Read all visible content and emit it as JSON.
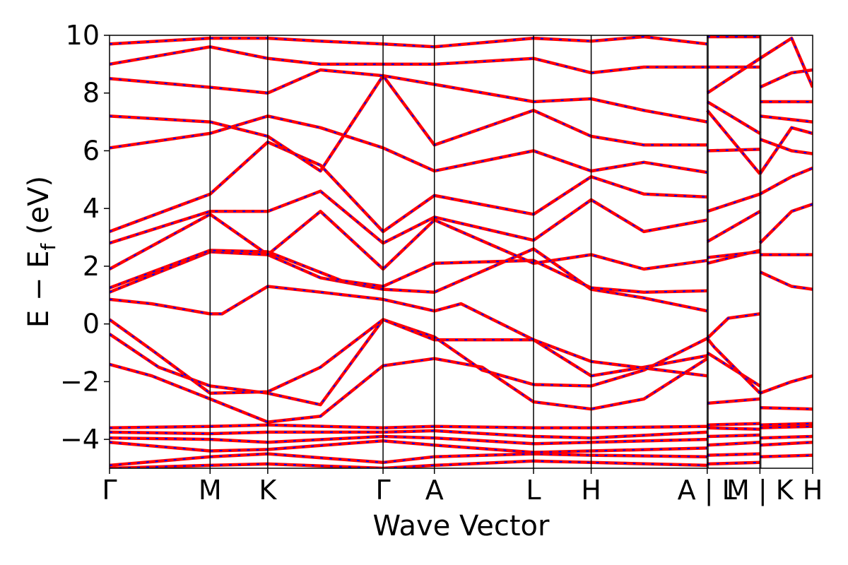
{
  "chart_data": {
    "type": "line",
    "title": "",
    "xlabel": "Wave Vector",
    "ylabel": "E − E",
    "ylabel_subscript": "f",
    "ylabel_unit": "(eV)",
    "ylim": [
      -5,
      10
    ],
    "y_ticks": [
      {
        "value": -4,
        "label": "−4"
      },
      {
        "value": -2,
        "label": "−2"
      },
      {
        "value": 0,
        "label": "0"
      },
      {
        "value": 2,
        "label": "2"
      },
      {
        "value": 4,
        "label": "4"
      },
      {
        "value": 6,
        "label": "6"
      },
      {
        "value": 8,
        "label": "8"
      },
      {
        "value": 10,
        "label": "10"
      }
    ],
    "k_path": [
      {
        "pos": 0.0,
        "label": "Γ"
      },
      {
        "pos": 0.143,
        "label": "M"
      },
      {
        "pos": 0.225,
        "label": "K"
      },
      {
        "pos": 0.389,
        "label": "Γ"
      },
      {
        "pos": 0.462,
        "label": "A"
      },
      {
        "pos": 0.603,
        "label": "L"
      },
      {
        "pos": 0.685,
        "label": "H"
      },
      {
        "pos": 0.85,
        "label": "A | L"
      },
      {
        "pos": 0.925,
        "label": "M | K"
      },
      {
        "pos": 1.0,
        "label": "H"
      }
    ],
    "segment_breaks": [
      0.85,
      0.925
    ],
    "line_colors": {
      "band_solid": "#ff0000",
      "band_dashed": "#0000ff"
    },
    "bands": [
      [
        [
          0,
          -5.0
        ],
        [
          0.143,
          -4.9
        ],
        [
          0.225,
          -4.85
        ],
        [
          0.389,
          -5.0
        ],
        [
          0.462,
          -4.9
        ],
        [
          0.603,
          -4.75
        ],
        [
          0.685,
          -4.8
        ],
        [
          0.85,
          -4.9
        ]
      ],
      [
        [
          0,
          -4.9
        ],
        [
          0.143,
          -4.6
        ],
        [
          0.225,
          -4.5
        ],
        [
          0.389,
          -4.8
        ],
        [
          0.462,
          -4.6
        ],
        [
          0.603,
          -4.5
        ],
        [
          0.685,
          -4.55
        ],
        [
          0.85,
          -4.6
        ]
      ],
      [
        [
          0,
          -4.1
        ],
        [
          0.143,
          -4.4
        ],
        [
          0.225,
          -4.35
        ],
        [
          0.389,
          -4.05
        ],
        [
          0.462,
          -4.2
        ],
        [
          0.603,
          -4.45
        ],
        [
          0.685,
          -4.4
        ],
        [
          0.85,
          -4.3
        ]
      ],
      [
        [
          0,
          -3.95
        ],
        [
          0.143,
          -4.0
        ],
        [
          0.225,
          -4.1
        ],
        [
          0.389,
          -3.9
        ],
        [
          0.462,
          -3.95
        ],
        [
          0.603,
          -4.15
        ],
        [
          0.685,
          -4.1
        ],
        [
          0.85,
          -4.0
        ]
      ],
      [
        [
          0,
          -3.75
        ],
        [
          0.143,
          -3.8
        ],
        [
          0.225,
          -3.75
        ],
        [
          0.389,
          -3.75
        ],
        [
          0.462,
          -3.7
        ],
        [
          0.603,
          -3.9
        ],
        [
          0.685,
          -3.95
        ],
        [
          0.85,
          -3.75
        ]
      ],
      [
        [
          0,
          -3.6
        ],
        [
          0.143,
          -3.55
        ],
        [
          0.225,
          -3.5
        ],
        [
          0.389,
          -3.6
        ],
        [
          0.462,
          -3.55
        ],
        [
          0.603,
          -3.6
        ],
        [
          0.685,
          -3.6
        ],
        [
          0.85,
          -3.55
        ]
      ],
      [
        [
          0,
          -1.4
        ],
        [
          0.06,
          -1.8
        ],
        [
          0.143,
          -2.6
        ],
        [
          0.225,
          -3.4
        ],
        [
          0.3,
          -3.2
        ],
        [
          0.389,
          -1.45
        ],
        [
          0.462,
          -1.2
        ],
        [
          0.53,
          -1.5
        ],
        [
          0.603,
          -2.7
        ],
        [
          0.685,
          -2.95
        ],
        [
          0.76,
          -2.6
        ],
        [
          0.85,
          -1.2
        ]
      ],
      [
        [
          0,
          -0.35
        ],
        [
          0.07,
          -1.5
        ],
        [
          0.143,
          -2.15
        ],
        [
          0.225,
          -2.4
        ],
        [
          0.3,
          -2.8
        ],
        [
          0.389,
          0.15
        ],
        [
          0.462,
          -0.45
        ],
        [
          0.53,
          -1.6
        ],
        [
          0.603,
          -2.1
        ],
        [
          0.685,
          -2.15
        ],
        [
          0.76,
          -1.6
        ],
        [
          0.85,
          -0.5
        ]
      ],
      [
        [
          0,
          0.15
        ],
        [
          0.06,
          -0.9
        ],
        [
          0.143,
          -2.4
        ],
        [
          0.225,
          -2.35
        ],
        [
          0.3,
          -1.5
        ],
        [
          0.389,
          0.15
        ],
        [
          0.462,
          -0.55
        ],
        [
          0.603,
          -0.55
        ],
        [
          0.685,
          -1.8
        ],
        [
          0.76,
          -1.5
        ],
        [
          0.85,
          -1.1
        ]
      ],
      [
        [
          0,
          0.85
        ],
        [
          0.06,
          0.7
        ],
        [
          0.143,
          0.35
        ],
        [
          0.16,
          0.35
        ],
        [
          0.225,
          1.3
        ],
        [
          0.3,
          1.1
        ],
        [
          0.389,
          0.85
        ],
        [
          0.462,
          0.45
        ],
        [
          0.5,
          0.7
        ],
        [
          0.603,
          -0.55
        ],
        [
          0.685,
          -1.3
        ],
        [
          0.85,
          -1.8
        ]
      ],
      [
        [
          0,
          1.1
        ],
        [
          0.143,
          2.5
        ],
        [
          0.225,
          2.4
        ],
        [
          0.3,
          1.6
        ],
        [
          0.389,
          1.2
        ],
        [
          0.462,
          1.1
        ],
        [
          0.603,
          2.6
        ],
        [
          0.685,
          1.2
        ],
        [
          0.76,
          0.9
        ],
        [
          0.85,
          0.45
        ]
      ],
      [
        [
          0,
          1.25
        ],
        [
          0.143,
          2.55
        ],
        [
          0.225,
          2.5
        ],
        [
          0.33,
          1.5
        ],
        [
          0.389,
          1.3
        ],
        [
          0.462,
          2.1
        ],
        [
          0.603,
          2.2
        ],
        [
          0.685,
          1.25
        ],
        [
          0.76,
          1.1
        ],
        [
          0.85,
          1.15
        ]
      ],
      [
        [
          0,
          1.9
        ],
        [
          0.143,
          3.8
        ],
        [
          0.225,
          2.4
        ],
        [
          0.3,
          3.9
        ],
        [
          0.389,
          1.9
        ],
        [
          0.462,
          3.6
        ],
        [
          0.603,
          2.1
        ],
        [
          0.685,
          2.4
        ],
        [
          0.76,
          1.9
        ],
        [
          0.85,
          2.2
        ]
      ],
      [
        [
          0,
          2.8
        ],
        [
          0.143,
          3.9
        ],
        [
          0.225,
          3.9
        ],
        [
          0.3,
          4.6
        ],
        [
          0.389,
          2.8
        ],
        [
          0.462,
          3.7
        ],
        [
          0.603,
          2.9
        ],
        [
          0.685,
          4.3
        ],
        [
          0.76,
          3.2
        ],
        [
          0.85,
          3.6
        ]
      ],
      [
        [
          0,
          3.2
        ],
        [
          0.143,
          4.5
        ],
        [
          0.225,
          6.3
        ],
        [
          0.3,
          5.5
        ],
        [
          0.389,
          3.2
        ],
        [
          0.462,
          4.45
        ],
        [
          0.603,
          3.8
        ],
        [
          0.685,
          5.1
        ],
        [
          0.76,
          4.5
        ],
        [
          0.85,
          4.4
        ]
      ],
      [
        [
          0,
          6.1
        ],
        [
          0.143,
          6.6
        ],
        [
          0.225,
          7.2
        ],
        [
          0.3,
          6.8
        ],
        [
          0.389,
          6.1
        ],
        [
          0.462,
          5.3
        ],
        [
          0.603,
          6.0
        ],
        [
          0.685,
          5.3
        ],
        [
          0.76,
          5.6
        ],
        [
          0.85,
          5.25
        ]
      ],
      [
        [
          0,
          7.2
        ],
        [
          0.143,
          7.0
        ],
        [
          0.225,
          6.5
        ],
        [
          0.3,
          5.3
        ],
        [
          0.389,
          8.6
        ],
        [
          0.462,
          6.2
        ],
        [
          0.603,
          7.4
        ],
        [
          0.685,
          6.5
        ],
        [
          0.76,
          6.2
        ],
        [
          0.85,
          6.2
        ]
      ],
      [
        [
          0,
          8.5
        ],
        [
          0.143,
          8.2
        ],
        [
          0.225,
          8.0
        ],
        [
          0.3,
          8.8
        ],
        [
          0.389,
          8.6
        ],
        [
          0.462,
          8.3
        ],
        [
          0.603,
          7.7
        ],
        [
          0.685,
          7.8
        ],
        [
          0.76,
          7.4
        ],
        [
          0.85,
          7.0
        ]
      ],
      [
        [
          0,
          9.0
        ],
        [
          0.143,
          9.6
        ],
        [
          0.225,
          9.2
        ],
        [
          0.3,
          9.0
        ],
        [
          0.389,
          9.0
        ],
        [
          0.462,
          9.0
        ],
        [
          0.603,
          9.2
        ],
        [
          0.685,
          8.7
        ],
        [
          0.76,
          8.9
        ],
        [
          0.85,
          8.9
        ]
      ],
      [
        [
          0,
          9.7
        ],
        [
          0.143,
          9.9
        ],
        [
          0.225,
          9.9
        ],
        [
          0.3,
          9.8
        ],
        [
          0.389,
          9.7
        ],
        [
          0.462,
          9.6
        ],
        [
          0.603,
          9.9
        ],
        [
          0.685,
          9.8
        ],
        [
          0.76,
          9.95
        ],
        [
          0.85,
          9.7
        ]
      ],
      [
        [
          0.85,
          -4.85
        ],
        [
          0.925,
          -4.8
        ]
      ],
      [
        [
          0.85,
          -4.55
        ],
        [
          0.925,
          -4.5
        ]
      ],
      [
        [
          0.85,
          -4.2
        ],
        [
          0.925,
          -4.1
        ]
      ],
      [
        [
          0.85,
          -3.9
        ],
        [
          0.925,
          -3.85
        ]
      ],
      [
        [
          0.85,
          -3.6
        ],
        [
          0.925,
          -3.65
        ]
      ],
      [
        [
          0.85,
          -3.5
        ],
        [
          0.925,
          -3.45
        ]
      ],
      [
        [
          0.85,
          -2.75
        ],
        [
          0.925,
          -2.6
        ]
      ],
      [
        [
          0.85,
          -1.0
        ],
        [
          0.925,
          -2.15
        ]
      ],
      [
        [
          0.85,
          -0.5
        ],
        [
          0.86,
          -0.8
        ],
        [
          0.925,
          -2.4
        ]
      ],
      [
        [
          0.85,
          -0.5
        ],
        [
          0.88,
          0.2
        ],
        [
          0.925,
          0.35
        ]
      ],
      [
        [
          0.85,
          2.1
        ],
        [
          0.925,
          2.55
        ]
      ],
      [
        [
          0.85,
          2.3
        ],
        [
          0.925,
          2.5
        ]
      ],
      [
        [
          0.85,
          2.85
        ],
        [
          0.925,
          3.9
        ]
      ],
      [
        [
          0.85,
          3.9
        ],
        [
          0.925,
          4.5
        ]
      ],
      [
        [
          0.85,
          6.0
        ],
        [
          0.925,
          6.05
        ]
      ],
      [
        [
          0.85,
          7.7
        ],
        [
          0.925,
          6.6
        ]
      ],
      [
        [
          0.85,
          7.4
        ],
        [
          0.925,
          5.2
        ]
      ],
      [
        [
          0.85,
          8.0
        ],
        [
          0.925,
          9.2
        ]
      ],
      [
        [
          0.85,
          8.9
        ],
        [
          0.925,
          8.9
        ]
      ],
      [
        [
          0.85,
          9.95
        ],
        [
          0.925,
          9.95
        ]
      ],
      [
        [
          0.925,
          -4.6
        ],
        [
          1.0,
          -4.55
        ]
      ],
      [
        [
          0.925,
          -4.2
        ],
        [
          1.0,
          -4.1
        ]
      ],
      [
        [
          0.925,
          -3.95
        ],
        [
          1.0,
          -3.9
        ]
      ],
      [
        [
          0.925,
          -3.6
        ],
        [
          1.0,
          -3.55
        ]
      ],
      [
        [
          0.925,
          -3.5
        ],
        [
          1.0,
          -3.45
        ]
      ],
      [
        [
          0.925,
          -2.9
        ],
        [
          1.0,
          -2.95
        ]
      ],
      [
        [
          0.925,
          -2.4
        ],
        [
          0.97,
          -2.0
        ],
        [
          1.0,
          -1.8
        ]
      ],
      [
        [
          0.925,
          2.4
        ],
        [
          1.0,
          2.4
        ]
      ],
      [
        [
          0.925,
          2.8
        ],
        [
          0.97,
          3.9
        ],
        [
          1.0,
          4.15
        ]
      ],
      [
        [
          0.925,
          1.8
        ],
        [
          0.97,
          1.3
        ],
        [
          1.0,
          1.2
        ]
      ],
      [
        [
          0.925,
          4.5
        ],
        [
          0.97,
          5.1
        ],
        [
          1.0,
          5.4
        ]
      ],
      [
        [
          0.925,
          5.2
        ],
        [
          0.97,
          6.8
        ],
        [
          1.0,
          6.6
        ]
      ],
      [
        [
          0.925,
          6.4
        ],
        [
          0.97,
          6.0
        ],
        [
          1.0,
          5.9
        ]
      ],
      [
        [
          0.925,
          7.2
        ],
        [
          1.0,
          7.0
        ]
      ],
      [
        [
          0.925,
          7.7
        ],
        [
          1.0,
          7.7
        ]
      ],
      [
        [
          0.925,
          8.2
        ],
        [
          0.97,
          8.7
        ],
        [
          1.0,
          8.8
        ]
      ],
      [
        [
          0.925,
          9.2
        ],
        [
          0.97,
          9.9
        ],
        [
          1.0,
          8.2
        ]
      ]
    ]
  }
}
